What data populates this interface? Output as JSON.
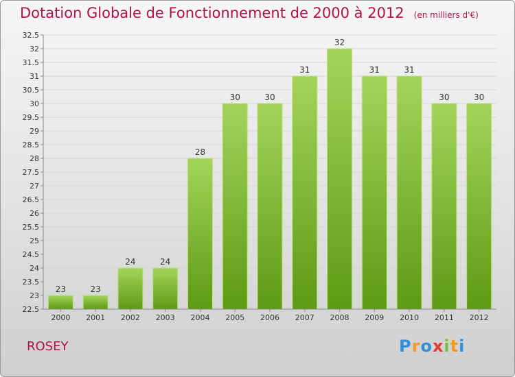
{
  "title": "Dotation Globale de Fonctionnement de 2000 à 2012",
  "subtitle": "(en milliers d'€)",
  "commune": "ROSEY",
  "logo": {
    "text": "Proxiti",
    "letters": [
      {
        "ch": "P",
        "color": "#2f8fd8"
      },
      {
        "ch": "r",
        "color": "#f39a1e"
      },
      {
        "ch": "o",
        "color": "#2f8fd8"
      },
      {
        "ch": "x",
        "color": "#e23a2e"
      },
      {
        "ch": "i",
        "color": "#7ac142"
      },
      {
        "ch": "t",
        "color": "#f39a1e"
      },
      {
        "ch": "i",
        "color": "#2f8fd8"
      }
    ]
  },
  "colors": {
    "title": "#b2104d",
    "bar_top": "#a3d45a",
    "bar_bottom": "#5e9a14",
    "grid": "#d6d6d6",
    "axis": "#888888"
  },
  "chart_data": {
    "type": "bar",
    "categories": [
      "2000",
      "2001",
      "2002",
      "2003",
      "2004",
      "2005",
      "2006",
      "2007",
      "2008",
      "2009",
      "2010",
      "2011",
      "2012"
    ],
    "values": [
      23,
      23,
      24,
      24,
      28,
      30,
      30,
      31,
      32,
      31,
      31,
      30,
      30
    ],
    "title": "Dotation Globale de Fonctionnement de 2000 à 2012",
    "subtitle": "(en milliers d'€)",
    "xlabel": "",
    "ylabel": "",
    "ylim": [
      22.5,
      32.5
    ],
    "ytick_step": 0.5,
    "grid": true,
    "legend": "none"
  }
}
